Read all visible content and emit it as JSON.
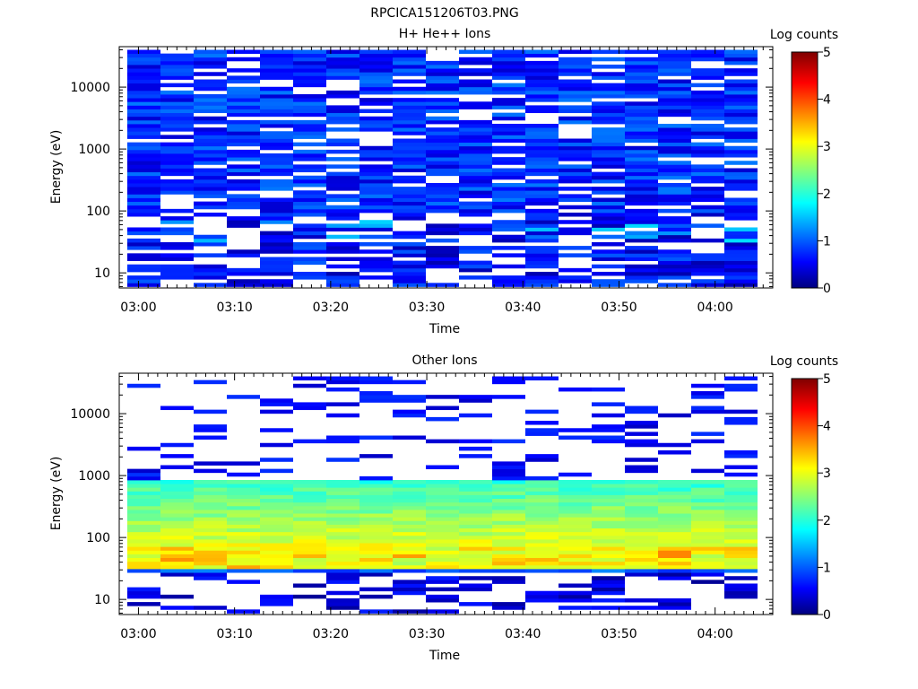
{
  "figure": {
    "title": "RPCICA151206T03.PNG"
  },
  "chart_data": [
    {
      "type": "heatmap",
      "title": "H+ He++ Ions",
      "xlabel": "Time",
      "ylabel": "Energy (eV)",
      "y_scale": "log",
      "ylim": [
        5.7,
        45000
      ],
      "y_ticks": [
        10,
        100,
        1000,
        10000
      ],
      "y_tick_labels": [
        "10",
        "100",
        "1000",
        "10000"
      ],
      "x_tick_labels": [
        "03:00",
        "03:10",
        "03:20",
        "03:30",
        "03:40",
        "03:50",
        "04:00"
      ],
      "time_columns": [
        "03:00",
        "03:03",
        "03:06",
        "03:10",
        "03:13",
        "03:16",
        "03:19",
        "03:23",
        "03:26",
        "03:29",
        "03:33",
        "03:36",
        "03:39",
        "03:42",
        "03:46",
        "03:49",
        "03:52",
        "03:55",
        "03:59"
      ],
      "colorbar": {
        "label": "Log counts",
        "range": [
          0,
          5
        ],
        "ticks": [
          "0",
          "1",
          "2",
          "3",
          "4",
          "5"
        ]
      },
      "description_of_values": "Sparse low counts (log counts ~0-1.2) across all energies ~6 eV to ~40 keV; bins mostly dark/medium blue with many empty (white) bins, especially below ~100 eV.",
      "typical_log_counts": {
        "below_100eV": 0.3,
        "100eV_to_40keV": 0.6,
        "max": 1.6
      }
    },
    {
      "type": "heatmap",
      "title": "Other Ions",
      "xlabel": "Time",
      "ylabel": "Energy (eV)",
      "y_scale": "log",
      "ylim": [
        5.7,
        45000
      ],
      "y_ticks": [
        10,
        100,
        1000,
        10000
      ],
      "y_tick_labels": [
        "10",
        "100",
        "1000",
        "10000"
      ],
      "x_tick_labels": [
        "03:00",
        "03:10",
        "03:20",
        "03:30",
        "03:40",
        "03:50",
        "04:00"
      ],
      "time_columns": [
        "03:00",
        "03:03",
        "03:06",
        "03:10",
        "03:13",
        "03:16",
        "03:19",
        "03:23",
        "03:26",
        "03:29",
        "03:33",
        "03:36",
        "03:39",
        "03:42",
        "03:46",
        "03:49",
        "03:52",
        "03:55",
        "03:59"
      ],
      "colorbar": {
        "label": "Log counts",
        "range": [
          0,
          5
        ],
        "ticks": [
          "0",
          "1",
          "2",
          "3",
          "4",
          "5"
        ]
      },
      "description_of_values": "Continuous band ~30 eV to ~900 eV with log counts ~2-3.5 (peak ~3.5 near 40-60 eV), sharp drop to ~1 at ~28 eV, sparse low counts (~0.3-0.8) above 1 keV and below 25 eV.",
      "band_profile": [
        {
          "energy_eV": 28,
          "log_counts": 1.0
        },
        {
          "energy_eV": 35,
          "log_counts": 2.6
        },
        {
          "energy_eV": 45,
          "log_counts": 3.2
        },
        {
          "energy_eV": 60,
          "log_counts": 3.0
        },
        {
          "energy_eV": 100,
          "log_counts": 2.6
        },
        {
          "energy_eV": 200,
          "log_counts": 2.3
        },
        {
          "energy_eV": 400,
          "log_counts": 2.1
        },
        {
          "energy_eV": 800,
          "log_counts": 1.8
        }
      ]
    }
  ]
}
